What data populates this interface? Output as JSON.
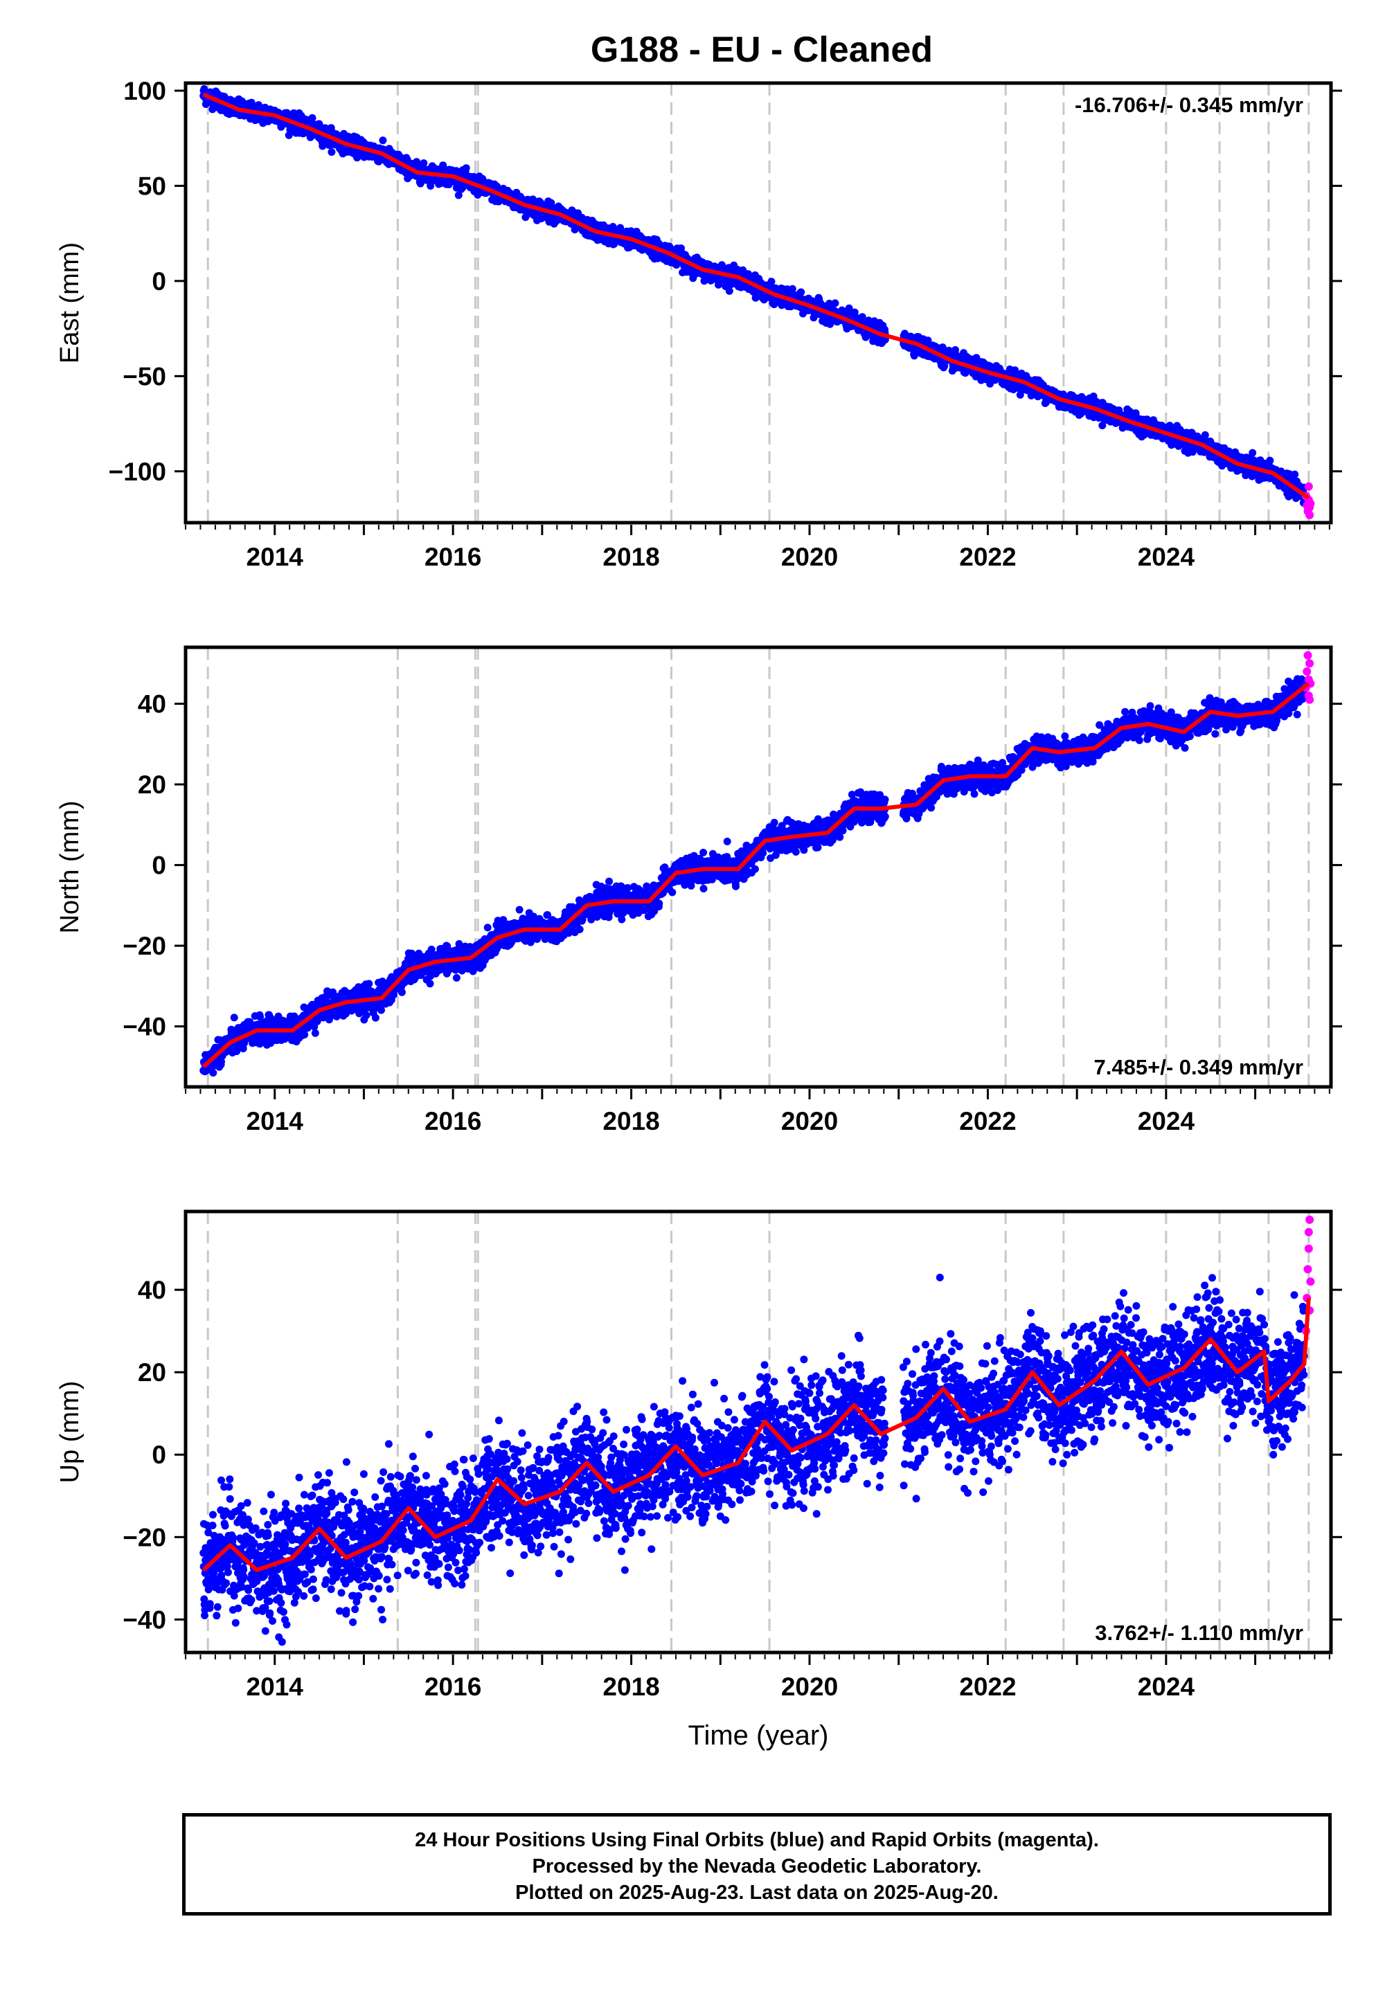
{
  "figure": {
    "title": "G188  - EU - Cleaned",
    "xlabel": "Time (year)",
    "footer": [
      "24 Hour Positions Using Final Orbits (blue) and Rapid Orbits (magenta).",
      "Processed by the Nevada Geodetic Laboratory.",
      "Plotted on 2025-Aug-23. Last data on 2025-Aug-20."
    ],
    "colors": {
      "final_orbits": "#0000ff",
      "rapid_orbits": "#ff00ff",
      "model_fit": "#ff0000",
      "event_lines": "#c8c8c8"
    }
  },
  "chart_data": [
    {
      "type": "scatter",
      "component": "east",
      "ylabel": "East (mm)",
      "xlim": [
        2013.0,
        2025.85
      ],
      "ylim": [
        -127,
        104
      ],
      "yticks": [
        100,
        50,
        0,
        -50,
        -100
      ],
      "xticks": [
        2014,
        2016,
        2018,
        2020,
        2022,
        2024
      ],
      "rate_label": "-16.706+/- 0.345 mm/yr",
      "rate_position": "top-right",
      "event_lines": [
        2013.25,
        2015.38,
        2016.25,
        2016.28,
        2018.45,
        2019.55,
        2022.2,
        2022.85,
        2024.0,
        2024.6,
        2025.15,
        2025.6
      ],
      "series": [
        {
          "name": "Final Orbits (blue)",
          "trend": {
            "x0": 2013.2,
            "y0": 98,
            "rate": -16.706,
            "annual_amp": 2.5,
            "scatter": 2.2
          },
          "range": [
            2013.2,
            2025.55
          ]
        },
        {
          "name": "Rapid Orbits (magenta)",
          "x": [
            2025.57,
            2025.58,
            2025.59,
            2025.6,
            2025.6,
            2025.61,
            2025.61,
            2025.62
          ],
          "y": [
            -113,
            -118,
            -121,
            -108,
            -115,
            -119,
            -123,
            -117
          ]
        }
      ],
      "fit": {
        "x": [
          2013.2,
          2013.6,
          2014.0,
          2014.4,
          2014.8,
          2015.2,
          2015.6,
          2016.0,
          2016.4,
          2016.8,
          2017.2,
          2017.6,
          2018.0,
          2018.4,
          2018.8,
          2019.2,
          2019.6,
          2020.0,
          2020.4,
          2020.8,
          2021.2,
          2021.6,
          2022.0,
          2022.4,
          2022.8,
          2023.2,
          2023.6,
          2024.0,
          2024.4,
          2024.8,
          2025.2,
          2025.6
        ],
        "y": [
          98,
          90,
          87,
          80,
          72,
          67,
          57,
          55,
          48,
          40,
          35,
          26,
          22,
          15,
          6,
          2,
          -7,
          -13,
          -20,
          -28,
          -33,
          -42,
          -48,
          -53,
          -62,
          -67,
          -74,
          -80,
          -86,
          -96,
          -101,
          -114
        ]
      }
    },
    {
      "type": "scatter",
      "component": "north",
      "ylabel": "North (mm)",
      "xlim": [
        2013.0,
        2025.85
      ],
      "ylim": [
        -55,
        54
      ],
      "yticks": [
        40,
        20,
        0,
        -20,
        -40
      ],
      "xticks": [
        2014,
        2016,
        2018,
        2020,
        2022,
        2024
      ],
      "rate_label": "7.485+/- 0.349 mm/yr",
      "rate_position": "bottom-right",
      "event_lines": [
        2013.25,
        2015.38,
        2016.25,
        2016.28,
        2018.45,
        2019.55,
        2022.2,
        2022.85,
        2024.0,
        2024.6,
        2025.15,
        2025.6
      ],
      "series": [
        {
          "name": "Final Orbits (blue)",
          "trend": {
            "x0": 2013.2,
            "y0": -50,
            "rate": 7.485,
            "annual_amp": 3.0,
            "scatter": 1.6
          },
          "range": [
            2013.2,
            2025.55
          ]
        },
        {
          "name": "Rapid Orbits (magenta)",
          "x": [
            2025.57,
            2025.58,
            2025.59,
            2025.6,
            2025.6,
            2025.61,
            2025.61,
            2025.62
          ],
          "y": [
            44,
            48,
            52,
            42,
            46,
            50,
            41,
            45
          ]
        }
      ],
      "fit": {
        "x": [
          2013.2,
          2013.5,
          2013.8,
          2014.2,
          2014.5,
          2014.8,
          2015.2,
          2015.5,
          2015.8,
          2016.2,
          2016.5,
          2016.8,
          2017.2,
          2017.5,
          2017.8,
          2018.2,
          2018.5,
          2018.8,
          2019.2,
          2019.5,
          2019.8,
          2020.2,
          2020.5,
          2020.8,
          2021.2,
          2021.5,
          2021.8,
          2022.2,
          2022.5,
          2022.8,
          2023.2,
          2023.5,
          2023.8,
          2024.2,
          2024.5,
          2024.8,
          2025.2,
          2025.6
        ],
        "y": [
          -50,
          -44,
          -41,
          -41,
          -36,
          -34,
          -33,
          -26,
          -24,
          -23,
          -18,
          -16,
          -16,
          -10,
          -9,
          -9,
          -2,
          -1,
          -1,
          6,
          7,
          8,
          14,
          14,
          15,
          21,
          22,
          22,
          29,
          28,
          29,
          34,
          35,
          33,
          38,
          37,
          38,
          45
        ]
      }
    },
    {
      "type": "scatter",
      "component": "up",
      "ylabel": "Up (mm)",
      "xlim": [
        2013.0,
        2025.85
      ],
      "ylim": [
        -48,
        59
      ],
      "yticks": [
        40,
        20,
        0,
        -20,
        -40
      ],
      "xticks": [
        2014,
        2016,
        2018,
        2020,
        2022,
        2024
      ],
      "rate_label": "3.762+/- 1.110 mm/yr",
      "rate_position": "bottom-right",
      "event_lines": [
        2013.25,
        2015.38,
        2016.25,
        2016.28,
        2018.45,
        2019.55,
        2022.2,
        2022.85,
        2024.0,
        2024.6,
        2025.15,
        2025.6
      ],
      "series": [
        {
          "name": "Final Orbits (blue)",
          "trend": {
            "x0": 2013.2,
            "y0": -26,
            "rate": 3.762,
            "annual_amp": 4.0,
            "scatter": 6.5
          },
          "range": [
            2013.2,
            2025.55
          ]
        },
        {
          "name": "Rapid Orbits (magenta)",
          "x": [
            2025.57,
            2025.58,
            2025.59,
            2025.6,
            2025.6,
            2025.61,
            2025.61,
            2025.62
          ],
          "y": [
            30,
            38,
            45,
            50,
            54,
            57,
            35,
            42
          ]
        }
      ],
      "fit": {
        "x": [
          2013.2,
          2013.5,
          2013.8,
          2014.2,
          2014.5,
          2014.8,
          2015.2,
          2015.5,
          2015.8,
          2016.2,
          2016.5,
          2016.8,
          2017.2,
          2017.5,
          2017.8,
          2018.2,
          2018.5,
          2018.8,
          2019.2,
          2019.5,
          2019.8,
          2020.2,
          2020.5,
          2020.8,
          2021.2,
          2021.5,
          2021.8,
          2022.2,
          2022.5,
          2022.8,
          2023.2,
          2023.5,
          2023.8,
          2024.2,
          2024.5,
          2024.8,
          2025.1,
          2025.15,
          2025.4,
          2025.55,
          2025.6
        ],
        "y": [
          -28,
          -22,
          -28,
          -25,
          -18,
          -25,
          -21,
          -13,
          -20,
          -16,
          -6,
          -12,
          -9,
          -2,
          -9,
          -5,
          2,
          -5,
          -2,
          8,
          1,
          5,
          12,
          5,
          9,
          16,
          8,
          11,
          20,
          12,
          18,
          25,
          17,
          21,
          28,
          20,
          25,
          13,
          18,
          22,
          38
        ]
      }
    }
  ]
}
